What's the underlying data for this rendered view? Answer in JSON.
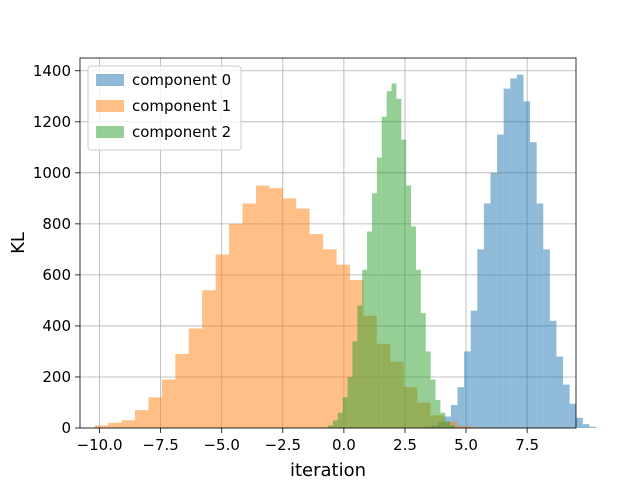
{
  "chart_data": {
    "type": "bar",
    "xlabel": "iteration",
    "ylabel": "KL",
    "xlim": [
      -10.8,
      9.5
    ],
    "ylim": [
      0,
      1450
    ],
    "xticks": [
      -10.0,
      -7.5,
      -5.0,
      -2.5,
      0.0,
      2.5,
      5.0,
      7.5
    ],
    "xtick_labels": [
      "−10.0",
      "−7.5",
      "−5.0",
      "−2.5",
      "0.0",
      "2.5",
      "5.0",
      "7.5"
    ],
    "yticks": [
      0,
      200,
      400,
      600,
      800,
      1000,
      1200,
      1400
    ],
    "ytick_labels": [
      "0",
      "200",
      "400",
      "600",
      "800",
      "1000",
      "1200",
      "1400"
    ],
    "grid": true,
    "legend_position": "top-left",
    "series": [
      {
        "name": "component 0",
        "color": "#1f77b4",
        "opacity": 0.5,
        "bin_start": 3.3,
        "bin_width": 0.27,
        "values": [
          3,
          10,
          25,
          45,
          90,
          160,
          300,
          460,
          700,
          880,
          1000,
          1150,
          1330,
          1370,
          1385,
          1280,
          1120,
          880,
          700,
          420,
          280,
          170,
          95,
          40,
          15,
          5
        ]
      },
      {
        "name": "component 1",
        "color": "#ff7f0e",
        "opacity": 0.5,
        "bin_start": -10.2,
        "bin_width": 0.55,
        "values": [
          10,
          20,
          30,
          70,
          120,
          190,
          290,
          390,
          540,
          680,
          800,
          880,
          950,
          940,
          900,
          860,
          760,
          700,
          640,
          580,
          440,
          330,
          260,
          160,
          100,
          50,
          25,
          8,
          3
        ]
      },
      {
        "name": "component 2",
        "color": "#2ca02c",
        "opacity": 0.5,
        "bin_start": -0.65,
        "bin_width": 0.2,
        "values": [
          10,
          30,
          60,
          120,
          200,
          340,
          480,
          620,
          770,
          920,
          1060,
          1220,
          1320,
          1350,
          1290,
          1130,
          950,
          790,
          620,
          450,
          300,
          190,
          110,
          60,
          25,
          10
        ]
      }
    ]
  }
}
